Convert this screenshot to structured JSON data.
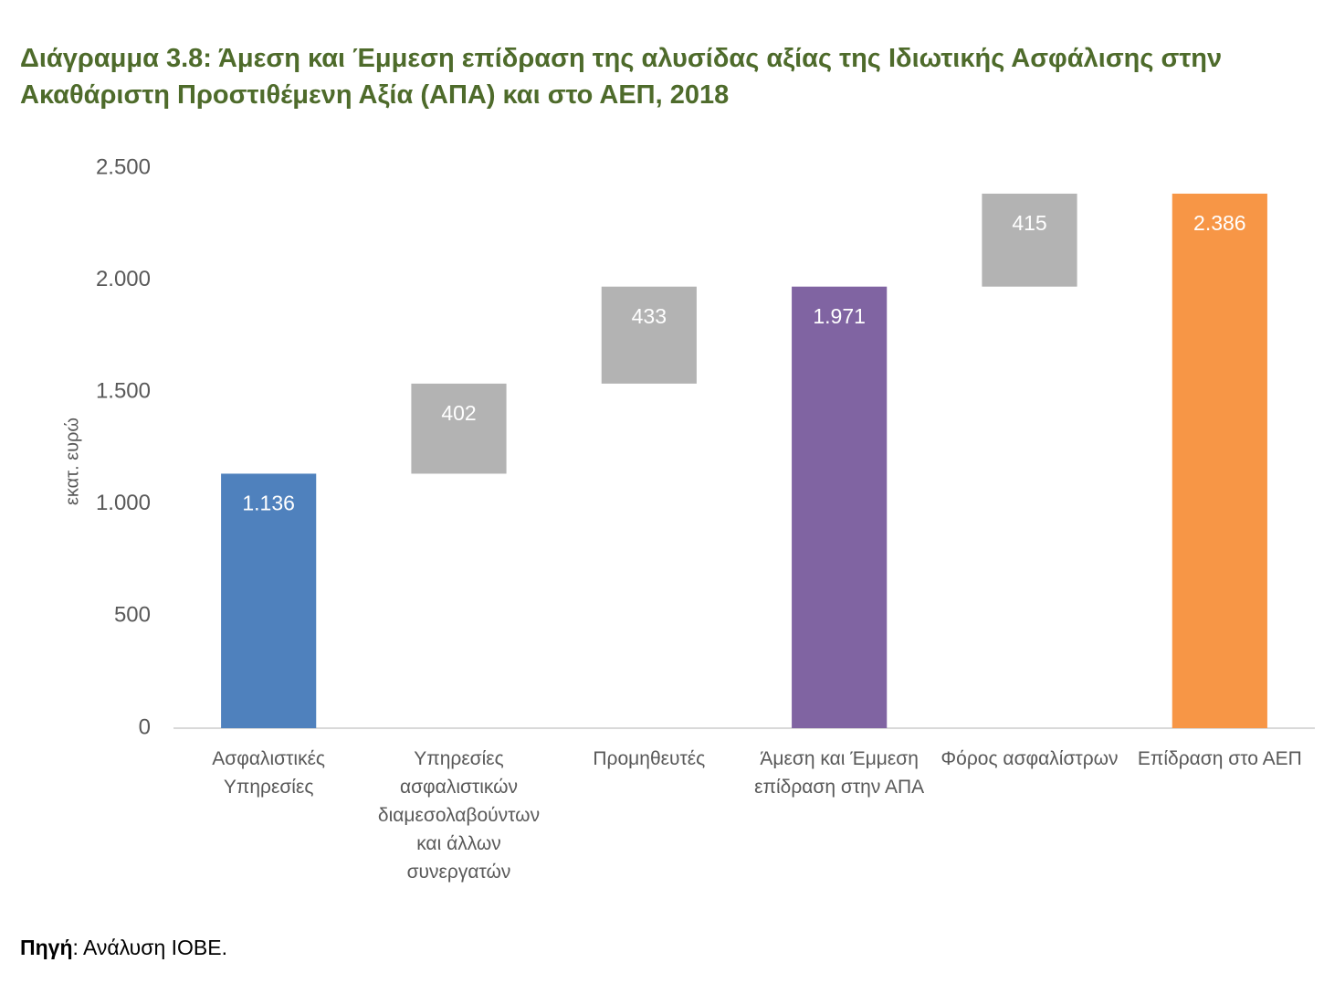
{
  "chart_data": {
    "type": "waterfall",
    "title": "Διάγραμμα 3.8: Άμεση και Έμμεση επίδραση της αλυσίδας αξίας της Ιδιωτικής Ασφάλισης στην Ακαθάριστη Προστιθέμενη Αξία (ΑΠΑ) και στο ΑΕΠ, 2018",
    "y_label": "εκατ. ευρώ",
    "categories": [
      "Ασφαλιστικές Υπηρεσίες",
      "Υπηρεσίες ασφαλιστικών διαμεσολαβούντων και άλλων συνεργατών",
      "Προμηθευτές",
      "Άμεση και Έμμεση επίδραση στην ΑΠΑ",
      "Φόρος ασφαλίστρων",
      "Επίδραση στο ΑΕΠ"
    ],
    "values": [
      1136,
      402,
      433,
      1971,
      415,
      2386
    ],
    "value_labels": [
      "1.136",
      "402",
      "433",
      "1.971",
      "415",
      "2.386"
    ],
    "measures": [
      "absolute",
      "relative",
      "relative",
      "total",
      "relative",
      "total"
    ],
    "colors": [
      "#4f81bd",
      "#b3b3b3",
      "#b3b3b3",
      "#8064a2",
      "#b3b3b3",
      "#f79646"
    ],
    "ylim": [
      0,
      2500
    ],
    "yticks": [
      0,
      500,
      {
        "value": 1000,
        "label": "1.000"
      },
      {
        "value": 1500,
        "label": "1.500"
      },
      {
        "value": 2000,
        "label": "2.000"
      },
      {
        "value": 2500,
        "label": "2.500"
      }
    ],
    "grid": false
  },
  "source": {
    "label": "Πηγή",
    "text": ": Ανάλυση ΙΟΒΕ."
  }
}
